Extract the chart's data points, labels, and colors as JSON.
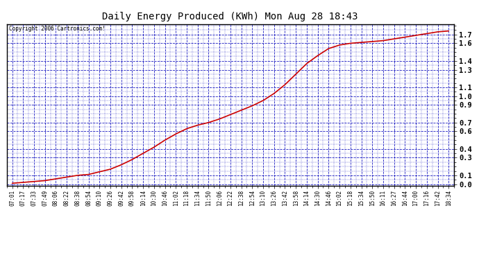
{
  "title": "Daily Energy Produced (KWh) Mon Aug 28 18:43",
  "copyright_text": "Copyright 2006 Cartronics.com!",
  "y_ticks": [
    0.0,
    0.1,
    0.3,
    0.4,
    0.6,
    0.7,
    0.9,
    1.0,
    1.1,
    1.3,
    1.4,
    1.6,
    1.7
  ],
  "ylim": [
    -0.02,
    1.82
  ],
  "line_color": "#cc0000",
  "background_color": "#ffffff",
  "plot_bg_color": "#ffffff",
  "grid_color": "#0000bb",
  "title_color": "#000000",
  "x_labels": [
    "07:01",
    "07:17",
    "07:33",
    "07:49",
    "08:06",
    "08:22",
    "08:38",
    "08:54",
    "09:10",
    "09:26",
    "09:42",
    "09:58",
    "10:14",
    "10:30",
    "10:46",
    "11:02",
    "11:18",
    "11:34",
    "11:50",
    "12:06",
    "12:22",
    "12:38",
    "12:54",
    "13:10",
    "13:26",
    "13:42",
    "13:58",
    "14:14",
    "14:30",
    "14:46",
    "15:02",
    "15:18",
    "15:34",
    "15:50",
    "16:11",
    "16:27",
    "16:44",
    "17:00",
    "17:16",
    "17:42",
    "18:34"
  ],
  "data_x": [
    0,
    1,
    2,
    3,
    4,
    5,
    6,
    7,
    8,
    9,
    10,
    11,
    12,
    13,
    14,
    15,
    16,
    17,
    18,
    19,
    20,
    21,
    22,
    23,
    24,
    25,
    26,
    27,
    28,
    29,
    30,
    31,
    32,
    33,
    34,
    35,
    36,
    37,
    38,
    39,
    40
  ],
  "data_y": [
    0.01,
    0.02,
    0.03,
    0.04,
    0.06,
    0.08,
    0.1,
    0.11,
    0.14,
    0.17,
    0.22,
    0.28,
    0.35,
    0.42,
    0.5,
    0.57,
    0.63,
    0.67,
    0.7,
    0.74,
    0.79,
    0.84,
    0.89,
    0.95,
    1.03,
    1.13,
    1.25,
    1.37,
    1.46,
    1.54,
    1.58,
    1.6,
    1.61,
    1.62,
    1.63,
    1.65,
    1.67,
    1.69,
    1.71,
    1.73,
    1.74
  ]
}
